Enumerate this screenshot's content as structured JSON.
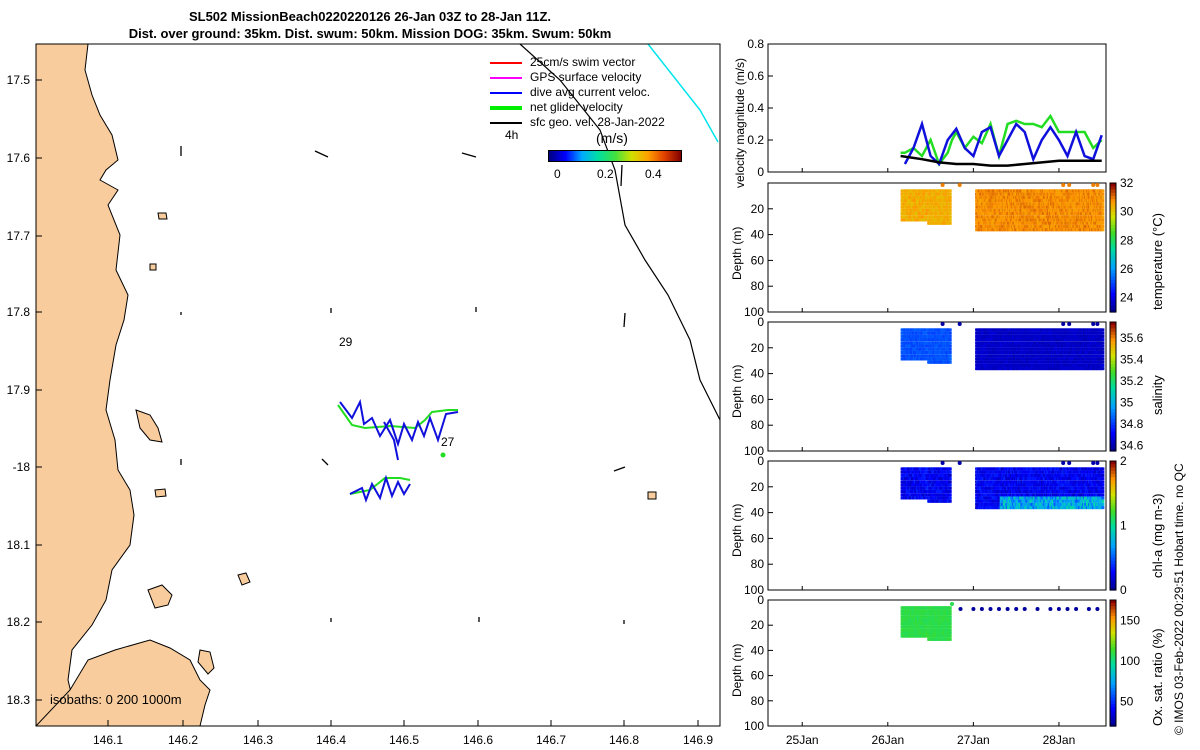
{
  "title": {
    "line1": "SL502 MissionBeach0220220126 26-Jan 03Z to 28-Jan 11Z.",
    "line2": "Dist. over ground: 35km. Dist. swum: 50km. Mission DOG: 35km. Swum: 50km"
  },
  "map": {
    "lon_ticks": [
      "146.1",
      "146.2",
      "146.3",
      "146.4",
      "146.5",
      "146.6",
      "146.7",
      "146.8",
      "146.9"
    ],
    "lat_ticks": [
      "17.5",
      "17.6",
      "17.7",
      "17.8",
      "17.9",
      "-18",
      "18.1",
      "18.2",
      "18.3"
    ],
    "legend": [
      "25cm/s swim vector",
      "GPS surface velocity",
      "dive avg current veloc.",
      "net glider velocity",
      "sfc geo. vel. 28-Jan-2022"
    ],
    "legend_colors": [
      "#ff0000",
      "#ff00ff",
      "#0000ff",
      "#00ee00",
      "#000000"
    ],
    "time_label": "4h",
    "colorbar_title": "(m/s)",
    "colorbar_ticks": [
      "0",
      "0.2",
      "0.4"
    ],
    "annotations": [
      "29",
      "27"
    ],
    "isobaths": "isobaths: 0   200  1000m",
    "land_color": "#f9cc9d"
  },
  "chart_data": [
    {
      "type": "line",
      "title": "velocity magnitude",
      "ylabel": "velocity magnitude (m/s)",
      "ylim": [
        0,
        0.8
      ],
      "yticks": [
        "0",
        "0.2",
        "0.4",
        "0.6",
        "0.8"
      ],
      "series": [
        {
          "name": "net glider velocity",
          "color": "#22dd22",
          "x": [
            26.15,
            26.2,
            26.3,
            26.4,
            26.5,
            26.6,
            26.7,
            26.75,
            26.8,
            26.9,
            27.0,
            27.1,
            27.2,
            27.3,
            27.4,
            27.5,
            27.6,
            27.7,
            27.8,
            27.9,
            28.0,
            28.1,
            28.2,
            28.3,
            28.4,
            28.5
          ],
          "values": [
            0.12,
            0.12,
            0.15,
            0.1,
            0.2,
            0.05,
            0.12,
            0.2,
            0.25,
            0.15,
            0.22,
            0.18,
            0.3,
            0.1,
            0.3,
            0.32,
            0.3,
            0.3,
            0.28,
            0.35,
            0.25,
            0.25,
            0.25,
            0.25,
            0.15,
            0.2
          ]
        },
        {
          "name": "dive avg current veloc.",
          "color": "#1010dd",
          "x": [
            26.2,
            26.3,
            26.4,
            26.5,
            26.6,
            26.7,
            26.8,
            26.9,
            27.0,
            27.1,
            27.2,
            27.3,
            27.4,
            27.5,
            27.6,
            27.7,
            27.8,
            27.9,
            28.0,
            28.1,
            28.2,
            28.3,
            28.4,
            28.5
          ],
          "values": [
            0.05,
            0.15,
            0.3,
            0.1,
            0.05,
            0.2,
            0.27,
            0.15,
            0.1,
            0.25,
            0.28,
            0.1,
            0.2,
            0.3,
            0.25,
            0.08,
            0.2,
            0.28,
            0.2,
            0.1,
            0.25,
            0.1,
            0.08,
            0.23
          ]
        },
        {
          "name": "sfc geo. vel.",
          "color": "#000000",
          "x": [
            26.15,
            26.4,
            26.6,
            26.8,
            27.0,
            27.2,
            27.4,
            27.6,
            27.8,
            28.0,
            28.2,
            28.4,
            28.5
          ],
          "values": [
            0.1,
            0.08,
            0.06,
            0.05,
            0.05,
            0.04,
            0.04,
            0.05,
            0.06,
            0.07,
            0.07,
            0.07,
            0.07
          ]
        }
      ]
    },
    {
      "type": "heatmap",
      "title": "temperature",
      "label": "temperature (°C)",
      "ylabel": "Depth (m)",
      "yticks": [
        "20",
        "40",
        "60",
        "80",
        "100"
      ],
      "clim": [
        23,
        32
      ],
      "cticks": [
        "24",
        "26",
        "28",
        "30",
        "32"
      ],
      "values_range": [
        29,
        31.5
      ]
    },
    {
      "type": "heatmap",
      "title": "salinity",
      "label": "salinity",
      "ylabel": "Depth (m)",
      "yticks": [
        "0",
        "20",
        "40",
        "60",
        "80",
        "100"
      ],
      "clim": [
        34.55,
        35.75
      ],
      "cticks": [
        "34.6",
        "34.8",
        "35",
        "35.2",
        "35.4",
        "35.6"
      ],
      "values_range": [
        34.6,
        34.9
      ]
    },
    {
      "type": "heatmap",
      "title": "chl-a",
      "label": "chl-a (mg m-3)",
      "ylabel": "Depth (m)",
      "yticks": [
        "0",
        "20",
        "40",
        "60",
        "80",
        "100"
      ],
      "clim": [
        0,
        2
      ],
      "cticks": [
        "0",
        "1",
        "2"
      ],
      "values_range": [
        0.1,
        1.1
      ]
    },
    {
      "type": "heatmap",
      "title": "oxygen",
      "label": "Ox. sat. ratio (%)",
      "ylabel": "Depth (m)",
      "yticks": [
        "0",
        "20",
        "40",
        "60",
        "80",
        "100"
      ],
      "clim": [
        20,
        175
      ],
      "cticks": [
        "50",
        "100",
        "150"
      ],
      "values_range": [
        25,
        115
      ]
    }
  ],
  "time_axis": {
    "ticks": [
      "25Jan",
      "26Jan",
      "27Jan",
      "28Jan"
    ],
    "xlim": [
      24.6,
      28.55
    ]
  },
  "credit": "© IMOS 03-Feb-2022 00:29:51 Hobart time. no QC"
}
